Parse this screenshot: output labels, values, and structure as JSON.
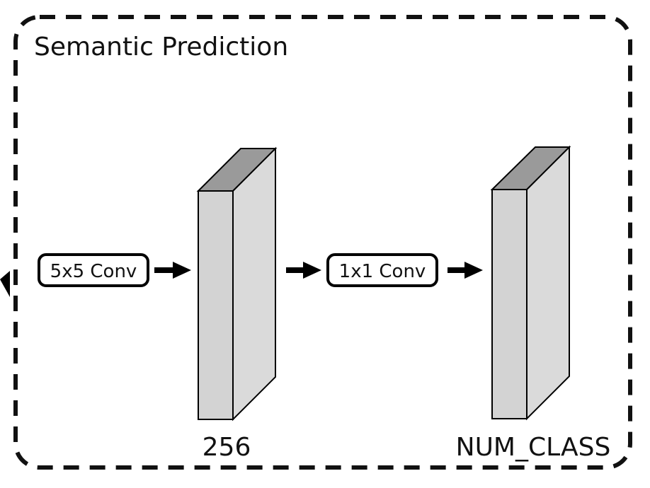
{
  "title": "Semantic Prediction",
  "blocks": [
    {
      "label": "5x5 Conv"
    },
    {
      "label": "1x1 Conv"
    }
  ],
  "feature_maps": [
    {
      "label": "256"
    },
    {
      "label": "NUM_CLASS"
    }
  ],
  "colors": {
    "border": "#111111",
    "block_front": "#d3d3d3",
    "block_side": "#dadada",
    "block_top": "#9a9a9a",
    "stroke": "#000000"
  }
}
